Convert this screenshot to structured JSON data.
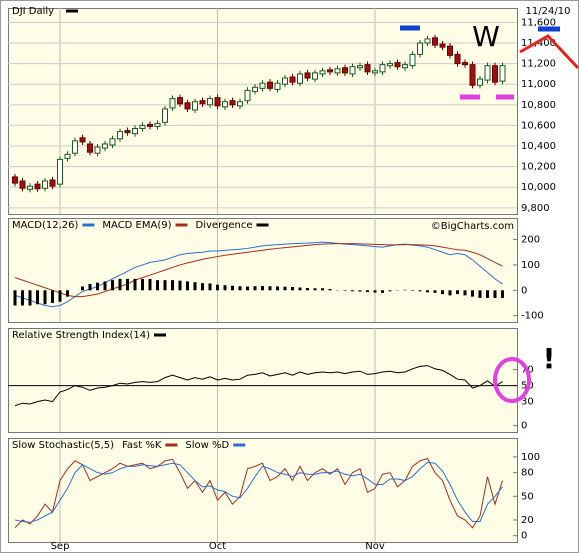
{
  "chart_data": [
    {
      "type": "candlestick",
      "title": "DJI Daily",
      "date_label": "11/24/10",
      "categories": [
        null,
        null,
        null,
        null,
        null,
        null,
        "Sep",
        null,
        null,
        null,
        null,
        null,
        null,
        null,
        null,
        null,
        null,
        null,
        null,
        null,
        null,
        null,
        null,
        null,
        null,
        null,
        null,
        "Oct",
        null,
        null,
        null,
        null,
        null,
        null,
        null,
        null,
        null,
        null,
        null,
        null,
        null,
        null,
        null,
        null,
        null,
        null,
        null,
        null,
        "Nov",
        null,
        null,
        null,
        null,
        null,
        null,
        null,
        null,
        null,
        null,
        null,
        null,
        null,
        null,
        null,
        null,
        null
      ],
      "open": [
        10100,
        10060,
        9980,
        10030,
        9990,
        10070,
        10030,
        10280,
        10330,
        10480,
        10420,
        10330,
        10380,
        10410,
        10470,
        10550,
        10520,
        10570,
        10610,
        10590,
        10630,
        10770,
        10870,
        10820,
        10750,
        10840,
        10800,
        10870,
        10780,
        10840,
        10790,
        10840,
        10930,
        10960,
        11020,
        10950,
        11000,
        11070,
        11010,
        11110,
        11050,
        11100,
        11140,
        11110,
        11160,
        11100,
        11160,
        11190,
        11110,
        11120,
        11180,
        11210,
        11160,
        11180,
        11290,
        11400,
        11450,
        11390,
        11370,
        11290,
        11210,
        11190,
        10990,
        11040,
        11180,
        11030
      ],
      "high": [
        10130,
        10090,
        10040,
        10060,
        10090,
        10100,
        10300,
        10350,
        10480,
        10510,
        10450,
        10420,
        10450,
        10500,
        10570,
        10580,
        10600,
        10630,
        10640,
        10650,
        10790,
        10890,
        10900,
        10850,
        10860,
        10870,
        10890,
        10900,
        10860,
        10870,
        10860,
        10970,
        11000,
        11040,
        11050,
        11040,
        11090,
        11100,
        11130,
        11140,
        11140,
        11160,
        11170,
        11180,
        11190,
        11200,
        11210,
        11220,
        11160,
        11220,
        11230,
        11240,
        11220,
        11320,
        11430,
        11470,
        11480,
        11420,
        11400,
        11320,
        11240,
        11220,
        11080,
        11210,
        11210,
        11210
      ],
      "low": [
        10010,
        9960,
        9950,
        9955,
        9960,
        9980,
        10000,
        10250,
        10300,
        10410,
        10310,
        10300,
        10350,
        10380,
        10440,
        10500,
        10490,
        10540,
        10560,
        10560,
        10600,
        10740,
        10780,
        10730,
        10720,
        10780,
        10770,
        10760,
        10750,
        10770,
        10760,
        10810,
        10900,
        10930,
        10930,
        10920,
        10970,
        10990,
        10980,
        11030,
        11020,
        11070,
        11090,
        11080,
        11080,
        11070,
        11130,
        11090,
        11080,
        11090,
        11150,
        11140,
        11130,
        11150,
        11260,
        11370,
        11350,
        11330,
        11250,
        11170,
        11160,
        10960,
        10960,
        11010,
        10990,
        11000
      ],
      "close": [
        10040,
        9990,
        10010,
        9985,
        10060,
        10010,
        10270,
        10320,
        10450,
        10440,
        10340,
        10390,
        10420,
        10470,
        10540,
        10530,
        10570,
        10600,
        10590,
        10620,
        10760,
        10860,
        10810,
        10760,
        10830,
        10810,
        10860,
        10790,
        10830,
        10800,
        10830,
        10940,
        10970,
        11010,
        10960,
        11010,
        11060,
        11020,
        11100,
        11060,
        11110,
        11130,
        11120,
        11150,
        11110,
        11170,
        11180,
        11120,
        11130,
        11190,
        11200,
        11170,
        11190,
        11290,
        11400,
        11440,
        11380,
        11360,
        11280,
        11200,
        11190,
        10990,
        11050,
        11180,
        11020,
        11180
      ],
      "up_color": "#ffffff",
      "down_color": "#a01010",
      "ylim": [
        9740,
        11740
      ],
      "yticks": [
        {
          "value": 9800,
          "label": "9,800"
        },
        {
          "value": 10000,
          "label": "10,000"
        },
        {
          "value": 10200,
          "label": "10,200"
        },
        {
          "value": 10400,
          "label": "10,400"
        },
        {
          "value": 10600,
          "label": "10,600"
        },
        {
          "value": 10800,
          "label": "10,800"
        },
        {
          "value": 11000,
          "label": "11,000"
        },
        {
          "value": 11200,
          "label": "11,200"
        },
        {
          "value": 11400,
          "label": "11,400"
        },
        {
          "value": 11600,
          "label": "11,600"
        }
      ],
      "grid": true,
      "annotations": [
        "W",
        "!"
      ]
    },
    {
      "type": "line",
      "credit": "©BigCharts.com",
      "ylim": [
        -125,
        285
      ],
      "yticks": [
        200,
        100,
        0,
        -100
      ],
      "series": [
        {
          "name": "MACD(12,26)",
          "color": "#2a6fd6",
          "values": [
            -20,
            -30,
            -40,
            -50,
            -60,
            -65,
            -60,
            -45,
            -25,
            -5,
            5,
            15,
            30,
            45,
            60,
            75,
            90,
            100,
            110,
            115,
            120,
            130,
            140,
            145,
            148,
            150,
            155,
            155,
            158,
            160,
            162,
            165,
            170,
            175,
            178,
            180,
            182,
            184,
            185,
            186,
            188,
            190,
            188,
            185,
            182,
            180,
            178,
            175,
            172,
            170,
            175,
            180,
            182,
            178,
            175,
            170,
            160,
            150,
            140,
            145,
            140,
            120,
            95,
            70,
            45,
            25
          ]
        },
        {
          "name": "MACD EMA(9)",
          "color": "#a0301a",
          "values": [
            50,
            40,
            30,
            20,
            10,
            0,
            -10,
            -20,
            -25,
            -25,
            -20,
            -15,
            -5,
            5,
            15,
            25,
            40,
            50,
            60,
            70,
            80,
            90,
            100,
            108,
            115,
            122,
            128,
            133,
            138,
            142,
            146,
            150,
            154,
            158,
            162,
            165,
            168,
            171,
            174,
            177,
            180,
            182,
            183,
            184,
            184,
            184,
            183,
            182,
            181,
            180,
            179,
            179,
            180,
            180,
            179,
            178,
            175,
            170,
            165,
            160,
            158,
            150,
            140,
            125,
            110,
            95
          ]
        },
        {
          "name": "Divergence",
          "color": "#000000",
          "kind": "bar",
          "values": [
            -60,
            -60,
            -60,
            -55,
            -55,
            -50,
            -45,
            -25,
            0,
            15,
            25,
            30,
            35,
            40,
            45,
            45,
            45,
            45,
            45,
            40,
            40,
            40,
            38,
            35,
            32,
            28,
            27,
            22,
            20,
            18,
            16,
            15,
            16,
            17,
            16,
            15,
            14,
            13,
            11,
            9,
            8,
            8,
            5,
            1,
            -2,
            -4,
            -5,
            -7,
            -9,
            -10,
            -4,
            1,
            2,
            -2,
            -4,
            -8,
            -10,
            -15,
            -20,
            -15,
            -20,
            -25,
            -30,
            -30,
            -30,
            -30
          ]
        }
      ]
    },
    {
      "type": "line",
      "ylim": [
        -8,
        122
      ],
      "yticks": [
        0,
        30,
        50,
        70
      ],
      "reference_line": 50,
      "series": [
        {
          "name": "Relative Strength Index(14)",
          "color": "#000000",
          "values": [
            25,
            28,
            27,
            30,
            32,
            30,
            42,
            45,
            50,
            48,
            44,
            47,
            48,
            50,
            53,
            52,
            54,
            55,
            54,
            55,
            60,
            63,
            60,
            57,
            60,
            58,
            61,
            57,
            59,
            57,
            58,
            63,
            64,
            66,
            62,
            64,
            66,
            63,
            67,
            64,
            66,
            67,
            66,
            67,
            65,
            67,
            68,
            64,
            65,
            67,
            68,
            66,
            67,
            71,
            74,
            75,
            71,
            69,
            64,
            58,
            57,
            47,
            50,
            56,
            49,
            55
          ]
        }
      ]
    },
    {
      "type": "line",
      "title": "Slow Stochastic(5,5)",
      "ylim": [
        -8,
        124
      ],
      "yticks": [
        0,
        20,
        50,
        80,
        100
      ],
      "series": [
        {
          "name": "Fast %K",
          "color": "#a0301a",
          "values": [
            10,
            20,
            15,
            25,
            40,
            30,
            70,
            85,
            95,
            90,
            70,
            75,
            80,
            85,
            92,
            88,
            90,
            92,
            85,
            88,
            95,
            97,
            80,
            60,
            70,
            55,
            70,
            45,
            55,
            40,
            50,
            85,
            88,
            92,
            70,
            75,
            85,
            70,
            88,
            70,
            80,
            85,
            78,
            85,
            65,
            80,
            85,
            55,
            60,
            78,
            80,
            62,
            70,
            88,
            95,
            98,
            80,
            70,
            45,
            25,
            20,
            10,
            25,
            75,
            40,
            70
          ]
        },
        {
          "name": "Slow %D",
          "color": "#2a6fd6",
          "values": [
            20,
            18,
            17,
            20,
            25,
            30,
            45,
            60,
            80,
            90,
            85,
            80,
            78,
            80,
            85,
            88,
            88,
            90,
            89,
            88,
            90,
            92,
            90,
            80,
            70,
            62,
            63,
            58,
            56,
            50,
            48,
            60,
            75,
            88,
            85,
            80,
            78,
            75,
            80,
            78,
            78,
            80,
            80,
            82,
            78,
            76,
            78,
            72,
            65,
            65,
            72,
            72,
            70,
            75,
            85,
            93,
            92,
            82,
            65,
            45,
            30,
            18,
            18,
            40,
            50,
            62
          ]
        }
      ]
    }
  ]
}
